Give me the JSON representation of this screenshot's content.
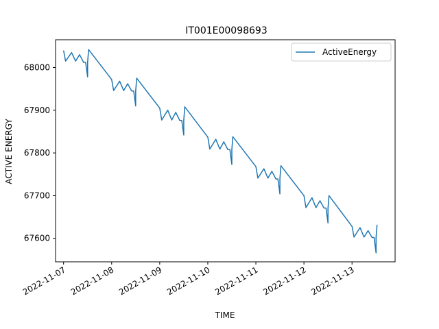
{
  "chart_data": {
    "type": "line",
    "title": "IT001E00098693",
    "xlabel": "TIME",
    "ylabel": "ACTIVE ENERGY",
    "x_ticks": [
      "2022-11-07",
      "2022-11-08",
      "2022-11-09",
      "2022-11-10",
      "2022-11-11",
      "2022-11-12",
      "2022-11-13"
    ],
    "y_ticks": [
      67600,
      67700,
      67800,
      67900,
      68000
    ],
    "xlim": [
      "2022-11-06T20:00",
      "2022-11-13T21:30"
    ],
    "ylim": [
      67545,
      68065
    ],
    "legend_position": "top-right",
    "grid": false,
    "series": [
      {
        "name": "ActiveEnergy",
        "color": "#1f77b4",
        "points": [
          [
            "2022-11-07T00:00",
            68040
          ],
          [
            "2022-11-07T01:00",
            68015
          ],
          [
            "2022-11-07T04:00",
            68035
          ],
          [
            "2022-11-07T06:00",
            68015
          ],
          [
            "2022-11-07T08:00",
            68030
          ],
          [
            "2022-11-07T10:00",
            68012
          ],
          [
            "2022-11-07T11:00",
            68012
          ],
          [
            "2022-11-07T12:00",
            67978
          ],
          [
            "2022-11-07T12:00",
            68012
          ],
          [
            "2022-11-07T12:30",
            68042
          ],
          [
            "2022-11-08T00:00",
            67972
          ],
          [
            "2022-11-08T01:00",
            67946
          ],
          [
            "2022-11-08T04:00",
            67968
          ],
          [
            "2022-11-08T06:00",
            67946
          ],
          [
            "2022-11-08T08:00",
            67962
          ],
          [
            "2022-11-08T10:00",
            67945
          ],
          [
            "2022-11-08T11:00",
            67945
          ],
          [
            "2022-11-08T12:00",
            67910
          ],
          [
            "2022-11-08T12:00",
            67945
          ],
          [
            "2022-11-08T12:30",
            67975
          ],
          [
            "2022-11-09T00:00",
            67905
          ],
          [
            "2022-11-09T01:00",
            67877
          ],
          [
            "2022-11-09T04:00",
            67900
          ],
          [
            "2022-11-09T06:00",
            67877
          ],
          [
            "2022-11-09T08:00",
            67895
          ],
          [
            "2022-11-09T10:00",
            67876
          ],
          [
            "2022-11-09T11:00",
            67876
          ],
          [
            "2022-11-09T12:00",
            67842
          ],
          [
            "2022-11-09T12:00",
            67876
          ],
          [
            "2022-11-09T12:30",
            67908
          ],
          [
            "2022-11-10T00:00",
            67837
          ],
          [
            "2022-11-10T01:00",
            67809
          ],
          [
            "2022-11-10T04:00",
            67832
          ],
          [
            "2022-11-10T06:00",
            67809
          ],
          [
            "2022-11-10T08:00",
            67826
          ],
          [
            "2022-11-10T10:00",
            67808
          ],
          [
            "2022-11-10T11:00",
            67808
          ],
          [
            "2022-11-10T12:00",
            67773
          ],
          [
            "2022-11-10T12:00",
            67808
          ],
          [
            "2022-11-10T12:30",
            67838
          ],
          [
            "2022-11-11T00:00",
            67768
          ],
          [
            "2022-11-11T01:00",
            67741
          ],
          [
            "2022-11-11T04:00",
            67763
          ],
          [
            "2022-11-11T06:00",
            67741
          ],
          [
            "2022-11-11T08:00",
            67757
          ],
          [
            "2022-11-11T10:00",
            67739
          ],
          [
            "2022-11-11T11:00",
            67739
          ],
          [
            "2022-11-11T12:00",
            67704
          ],
          [
            "2022-11-11T12:00",
            67740
          ],
          [
            "2022-11-11T12:30",
            67770
          ],
          [
            "2022-11-12T00:00",
            67700
          ],
          [
            "2022-11-12T01:00",
            67672
          ],
          [
            "2022-11-12T04:00",
            67695
          ],
          [
            "2022-11-12T06:00",
            67672
          ],
          [
            "2022-11-12T08:00",
            67688
          ],
          [
            "2022-11-12T10:00",
            67671
          ],
          [
            "2022-11-12T11:00",
            67671
          ],
          [
            "2022-11-12T12:00",
            67636
          ],
          [
            "2022-11-12T12:00",
            67670
          ],
          [
            "2022-11-12T12:30",
            67700
          ],
          [
            "2022-11-13T00:00",
            67628
          ],
          [
            "2022-11-13T01:00",
            67603
          ],
          [
            "2022-11-13T04:00",
            67625
          ],
          [
            "2022-11-13T06:00",
            67603
          ],
          [
            "2022-11-13T08:00",
            67618
          ],
          [
            "2022-11-13T10:00",
            67602
          ],
          [
            "2022-11-13T11:00",
            67602
          ],
          [
            "2022-11-13T12:00",
            67566
          ],
          [
            "2022-11-13T12:00",
            67602
          ],
          [
            "2022-11-13T12:30",
            67632
          ]
        ]
      }
    ]
  }
}
